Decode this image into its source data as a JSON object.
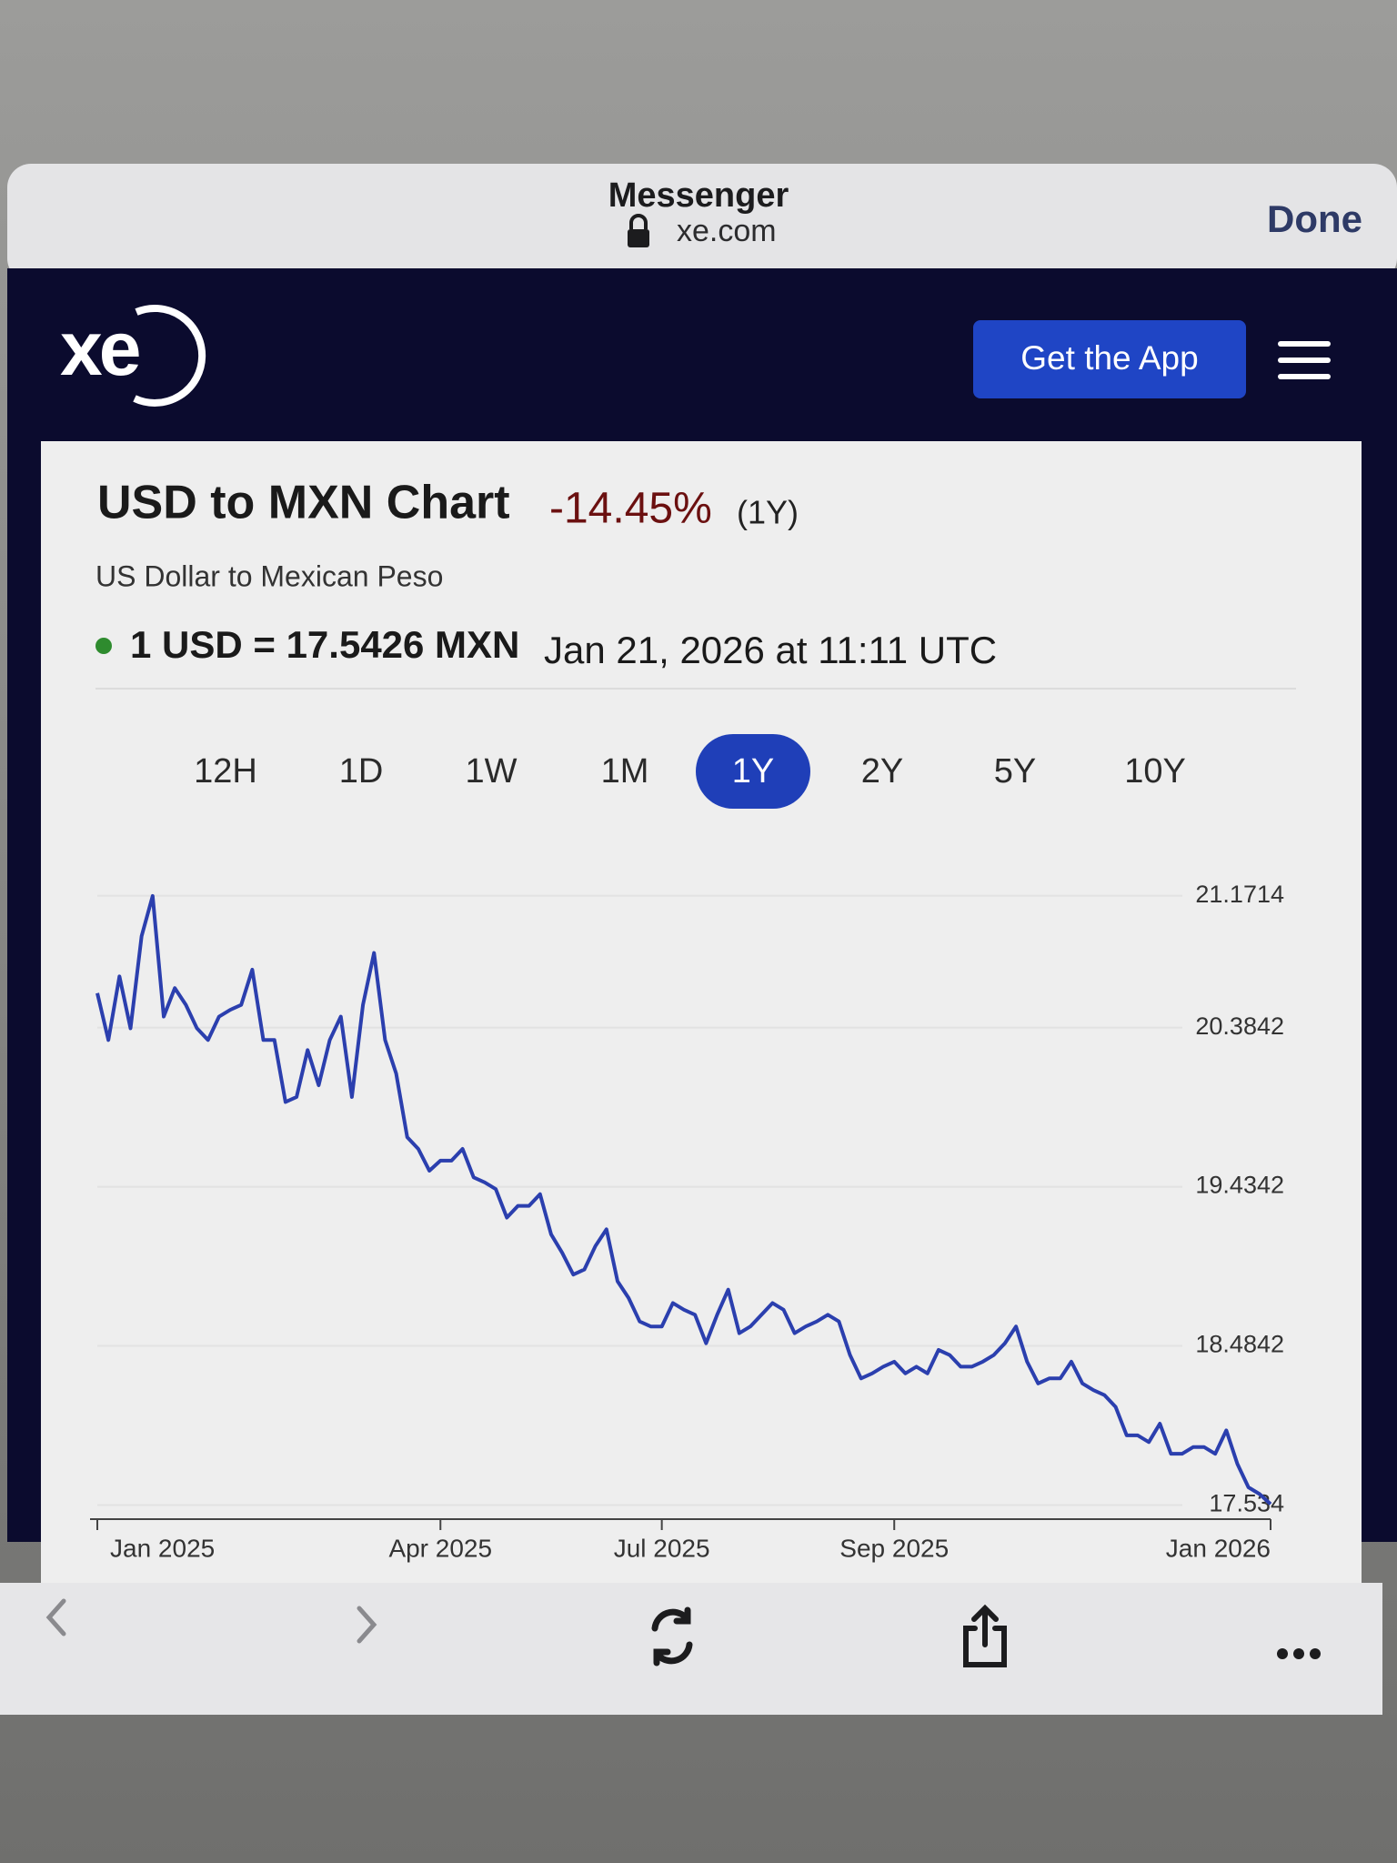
{
  "browser": {
    "title": "Messenger",
    "url": "xe.com",
    "done": "Done"
  },
  "nav": {
    "logo": "xe",
    "cta": "Get the App"
  },
  "header": {
    "title": "USD to MXN Chart",
    "change": "-14.45%",
    "change_period": "(1Y)",
    "subtitle": "US Dollar to Mexican Peso",
    "rate": "1 USD = 17.5426 MXN",
    "timestamp": "Jan 21, 2026 at 11:11 UTC"
  },
  "ranges": [
    "12H",
    "1D",
    "1W",
    "1M",
    "1Y",
    "2Y",
    "5Y",
    "10Y"
  ],
  "active_range": "1Y",
  "chart_data": {
    "type": "line",
    "color": "#2b3fae",
    "grid": true,
    "ylim": [
      17.45,
      21.3
    ],
    "yticks": [
      21.1714,
      20.3842,
      19.4342,
      18.4842,
      17.534
    ],
    "categories": [
      "Jan 2025",
      null,
      null,
      null,
      null,
      null,
      null,
      null,
      null,
      null,
      null,
      null,
      null,
      null,
      null,
      null,
      null,
      null,
      null,
      null,
      null,
      null,
      null,
      null,
      null,
      null,
      null,
      null,
      null,
      null,
      null,
      "Apr 2025",
      null,
      null,
      null,
      null,
      null,
      null,
      null,
      null,
      null,
      null,
      null,
      null,
      null,
      null,
      null,
      null,
      null,
      null,
      null,
      "Jul 2025",
      null,
      null,
      null,
      null,
      null,
      null,
      null,
      null,
      null,
      null,
      null,
      null,
      null,
      null,
      null,
      null,
      null,
      null,
      null,
      null,
      "Sep 2025",
      null,
      null,
      null,
      null,
      null,
      null,
      null,
      null,
      null,
      null,
      null,
      null,
      null,
      null,
      null,
      null,
      null,
      null,
      null,
      null,
      null,
      null,
      null,
      null,
      null,
      null,
      null,
      null,
      null,
      null,
      null,
      null,
      null,
      "Jan 2026"
    ],
    "values": [
      20.59,
      20.31,
      20.69,
      20.38,
      20.93,
      21.17,
      20.45,
      20.62,
      20.52,
      20.38,
      20.31,
      20.45,
      20.49,
      20.52,
      20.73,
      20.31,
      20.31,
      19.94,
      19.97,
      20.25,
      20.04,
      20.31,
      20.45,
      19.97,
      20.52,
      20.83,
      20.31,
      20.11,
      19.73,
      19.66,
      19.53,
      19.59,
      19.59,
      19.66,
      19.49,
      19.46,
      19.42,
      19.25,
      19.32,
      19.32,
      19.39,
      19.15,
      19.04,
      18.91,
      18.94,
      19.08,
      19.18,
      18.87,
      18.77,
      18.63,
      18.6,
      18.6,
      18.74,
      18.7,
      18.67,
      18.5,
      18.67,
      18.82,
      18.56,
      18.6,
      18.67,
      18.74,
      18.7,
      18.56,
      18.6,
      18.63,
      18.67,
      18.63,
      18.43,
      18.29,
      18.32,
      18.36,
      18.39,
      18.32,
      18.36,
      18.32,
      18.46,
      18.43,
      18.36,
      18.36,
      18.39,
      18.43,
      18.5,
      18.6,
      18.39,
      18.26,
      18.29,
      18.29,
      18.39,
      18.26,
      18.22,
      18.19,
      18.12,
      17.95,
      17.95,
      17.91,
      18.02,
      17.84,
      17.84,
      17.88,
      17.88,
      17.84,
      17.98,
      17.78,
      17.64,
      17.6,
      17.54
    ]
  }
}
